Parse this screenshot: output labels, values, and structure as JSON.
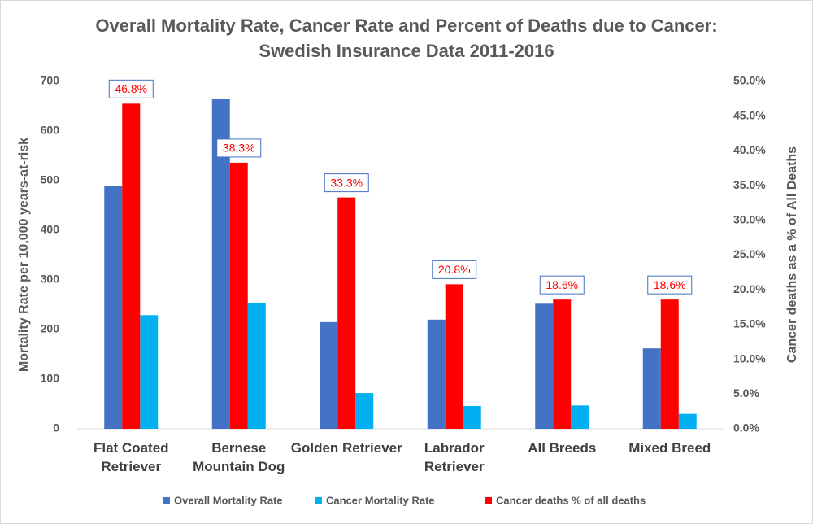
{
  "chart_data": {
    "type": "bar",
    "title": "Overall Mortality Rate, Cancer Rate and Percent of Deaths due to Cancer:",
    "subtitle": "Swedish Insurance Data 2011-2016",
    "y_label": "Mortality Rate per 10,000 years-at-risk",
    "y2_label": "Cancer deaths as a % of All Deaths",
    "categories": [
      "Flat Coated Retriever",
      "Bernese Mountain Dog",
      "Golden Retriever",
      "Labrador Retriever",
      "All Breeds",
      "Mixed Breed"
    ],
    "series": [
      {
        "name": "Overall Mortality Rate",
        "color": "#4472c4",
        "values": [
          489,
          664,
          215,
          220,
          252,
          162
        ]
      },
      {
        "name": "Cancer Mortality Rate",
        "color": "#00b0f0",
        "values": [
          229,
          254,
          72,
          46,
          47,
          30
        ]
      },
      {
        "name": "Cancer deaths % of all deaths",
        "color": "#ff0000",
        "axis": "y2",
        "values": [
          46.8,
          38.3,
          33.3,
          20.8,
          18.6,
          18.6
        ],
        "value_labels": [
          "46.8%",
          "38.3%",
          "33.3%",
          "20.8%",
          "18.6%",
          "18.6%"
        ]
      }
    ],
    "ylim": [
      0,
      700
    ],
    "yticks": [
      0,
      100,
      200,
      300,
      400,
      500,
      600,
      700
    ],
    "y2lim": [
      0,
      50
    ],
    "y2ticks": [
      {
        "value": 0,
        "label": "0.0%"
      },
      {
        "value": 5,
        "label": "5.0%"
      },
      {
        "value": 10,
        "label": "10.0%"
      },
      {
        "value": 15,
        "label": "15.0%"
      },
      {
        "value": 20,
        "label": "20.0%"
      },
      {
        "value": 25,
        "label": "25.0%"
      },
      {
        "value": 30,
        "label": "30.0%"
      },
      {
        "value": 35,
        "label": "35.0%"
      },
      {
        "value": 40,
        "label": "40.0%"
      },
      {
        "value": 45,
        "label": "45.0%"
      },
      {
        "value": 50,
        "label": "50.0%"
      }
    ],
    "legend": "bottom"
  }
}
